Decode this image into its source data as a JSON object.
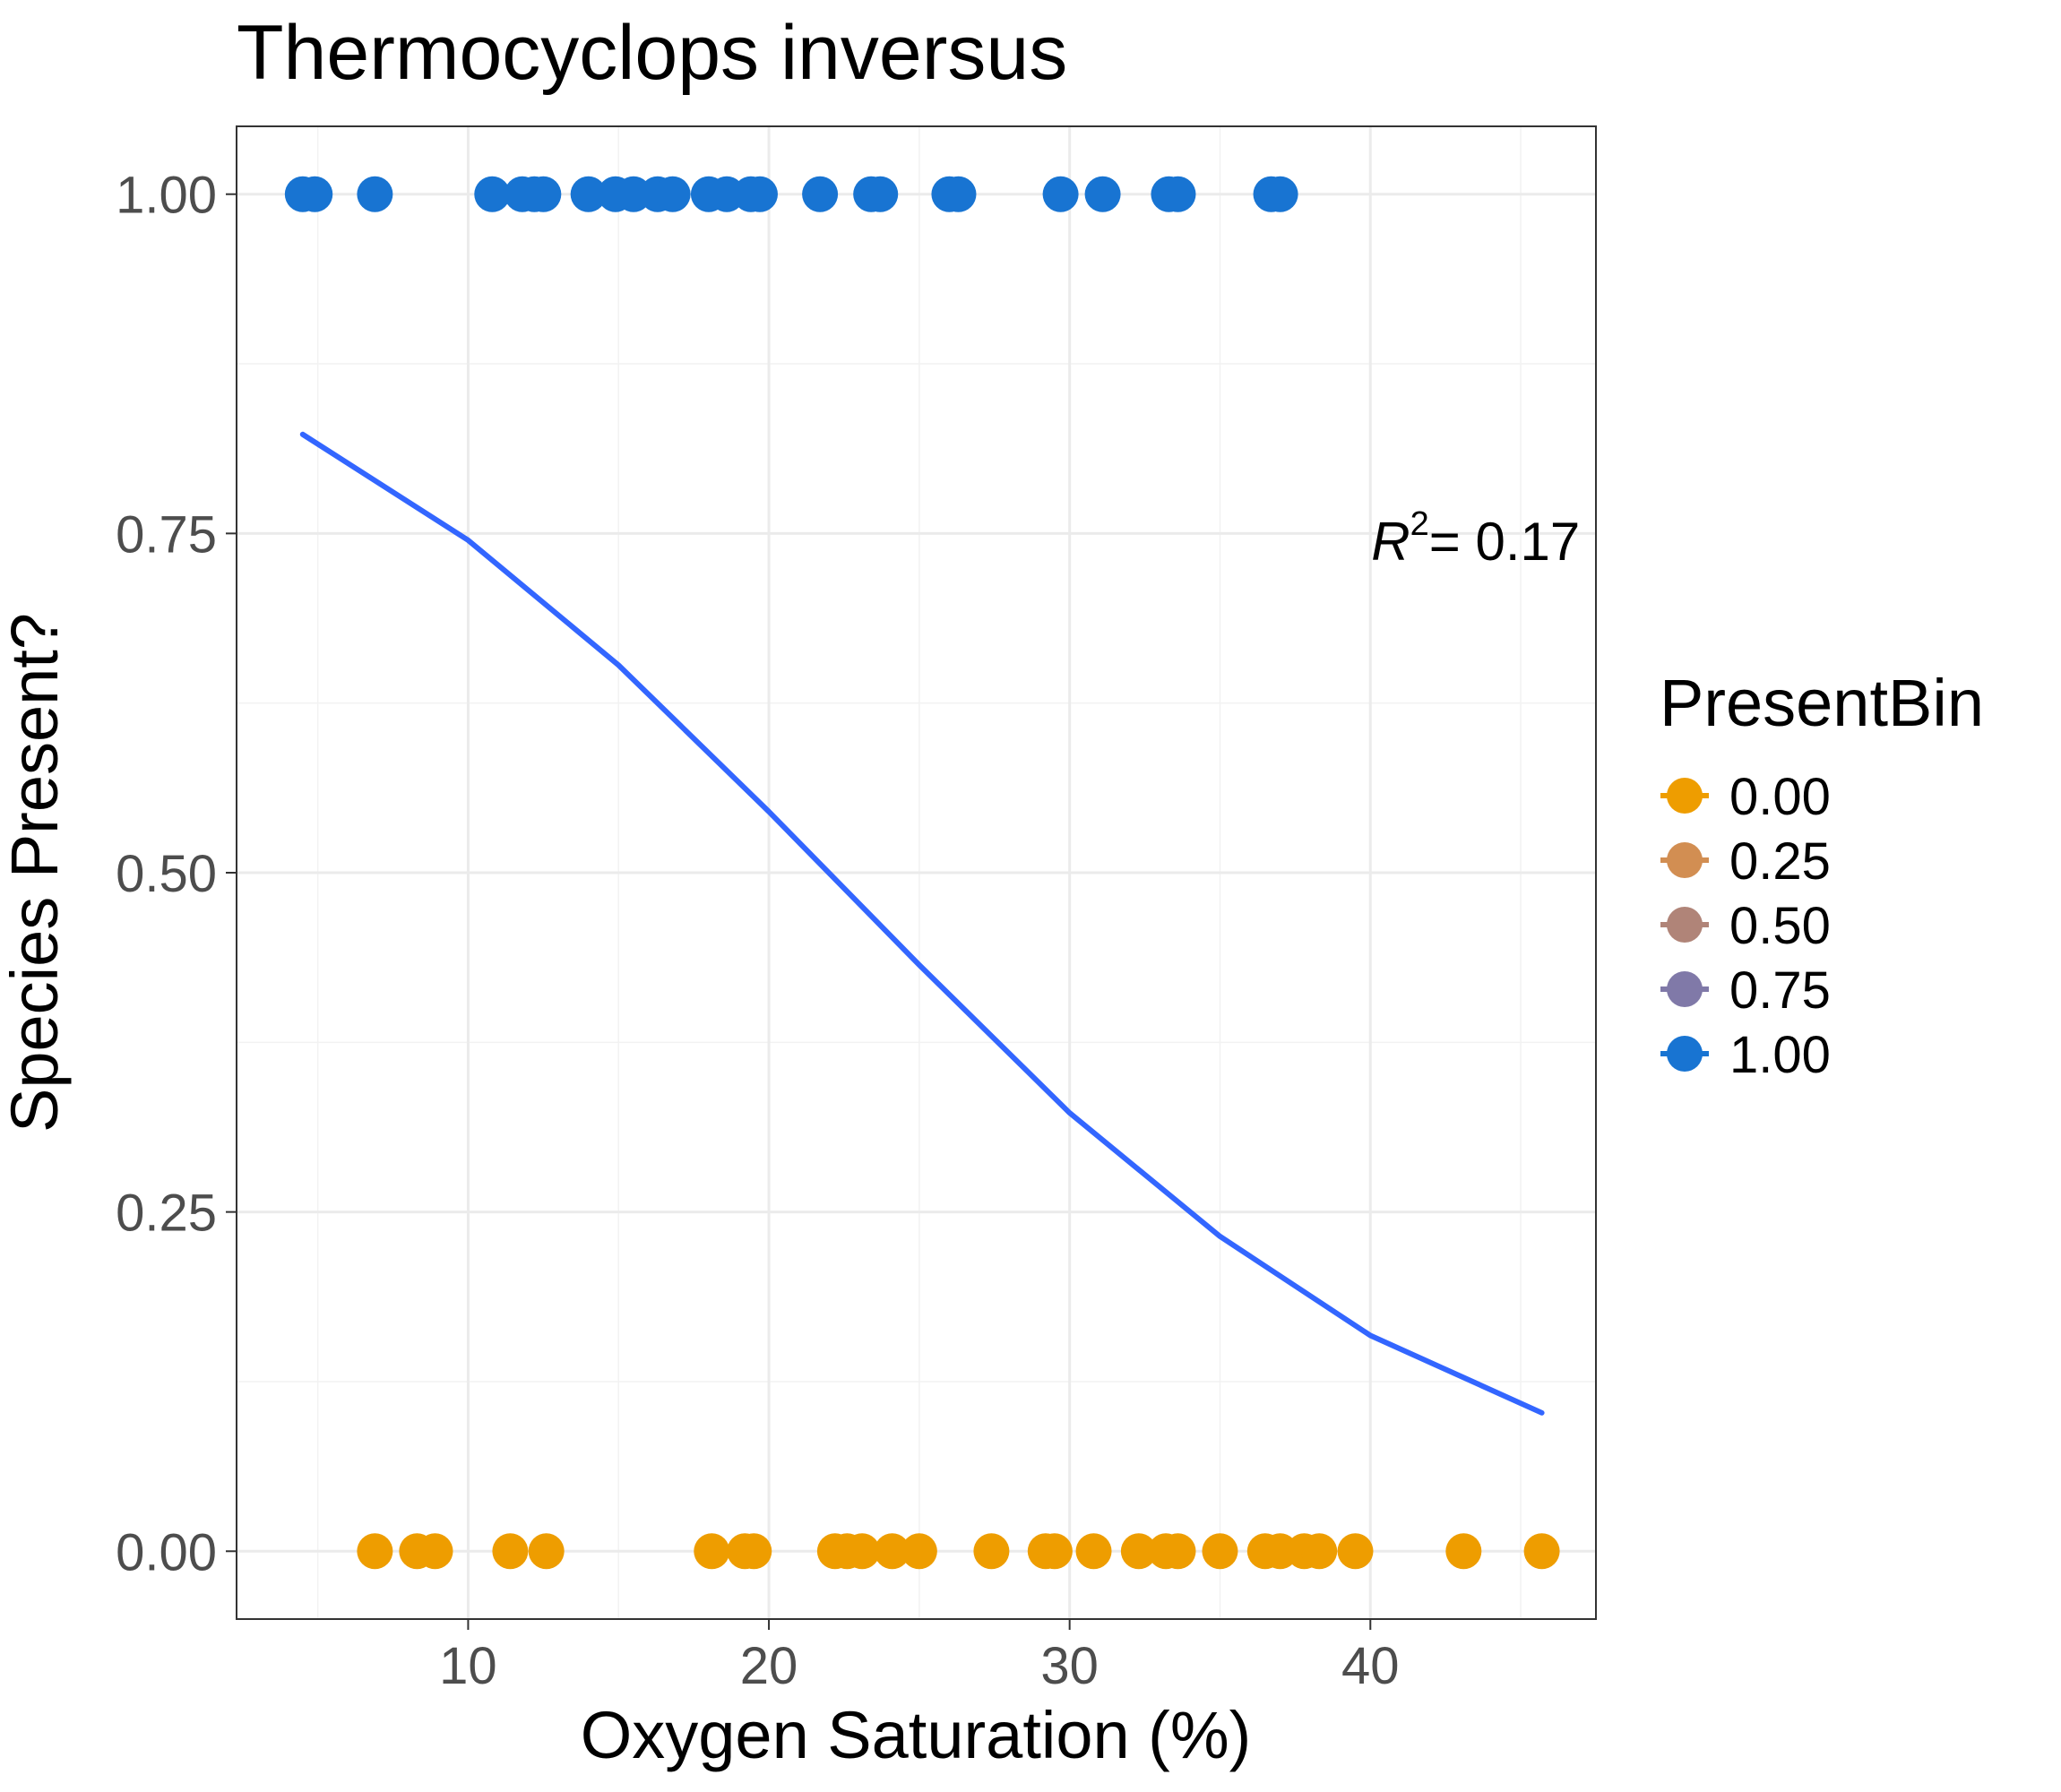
{
  "chart_data": {
    "type": "scatter",
    "title": "Thermocyclops inversus",
    "xlabel": "Oxygen Saturation (%)",
    "ylabel": "Species Present?",
    "xlim": [
      2.3,
      47.5
    ],
    "ylim": [
      -0.05,
      1.05
    ],
    "x_ticks": [
      10,
      20,
      30,
      40
    ],
    "y_ticks": [
      0.0,
      0.25,
      0.5,
      0.75,
      1.0
    ],
    "x_tick_labels": [
      "10",
      "20",
      "30",
      "40"
    ],
    "y_tick_labels": [
      "0.00",
      "0.25",
      "0.50",
      "0.75",
      "1.00"
    ],
    "grid": true,
    "legend": {
      "title": "PresentBin",
      "placement": "right",
      "entries": [
        {
          "label": "0.00",
          "color": "#EE9D00"
        },
        {
          "label": "0.25",
          "color": "#D28E52"
        },
        {
          "label": "0.50",
          "color": "#B08478"
        },
        {
          "label": "0.75",
          "color": "#8079A8"
        },
        {
          "label": "1.00",
          "color": "#1874D2"
        }
      ]
    },
    "annotation": {
      "r2_symbol": "R",
      "r2_superscript": "2",
      "r2_value": "= 0.17",
      "x": 43.5,
      "y": 0.745
    },
    "series": [
      {
        "present_bin": 1.0,
        "color": "#1874D2",
        "y": 1.0,
        "x": [
          4.5,
          4.9,
          6.9,
          10.8,
          11.8,
          12.2,
          12.5,
          14.0,
          14.9,
          15.5,
          16.3,
          16.8,
          18.0,
          18.6,
          19.4,
          19.7,
          21.7,
          23.4,
          23.7,
          26.0,
          26.3,
          29.7,
          31.1,
          33.3,
          33.6,
          36.7,
          37.0
        ]
      },
      {
        "present_bin": 0.0,
        "color": "#EE9D00",
        "y": 0.0,
        "x": [
          6.9,
          8.3,
          8.9,
          11.4,
          12.6,
          18.1,
          19.2,
          19.5,
          22.2,
          22.6,
          23.1,
          24.1,
          25.0,
          27.4,
          29.2,
          29.5,
          30.8,
          32.3,
          33.2,
          33.6,
          35.0,
          36.5,
          37.0,
          37.8,
          38.3,
          39.5,
          43.1,
          45.7
        ]
      }
    ],
    "fit": {
      "type": "logistic",
      "color": "#3366FF",
      "x": [
        4.5,
        10,
        15,
        20,
        25,
        30,
        35,
        40,
        45.7
      ],
      "y": [
        0.823,
        0.745,
        0.653,
        0.545,
        0.432,
        0.323,
        0.232,
        0.159,
        0.102
      ]
    }
  }
}
